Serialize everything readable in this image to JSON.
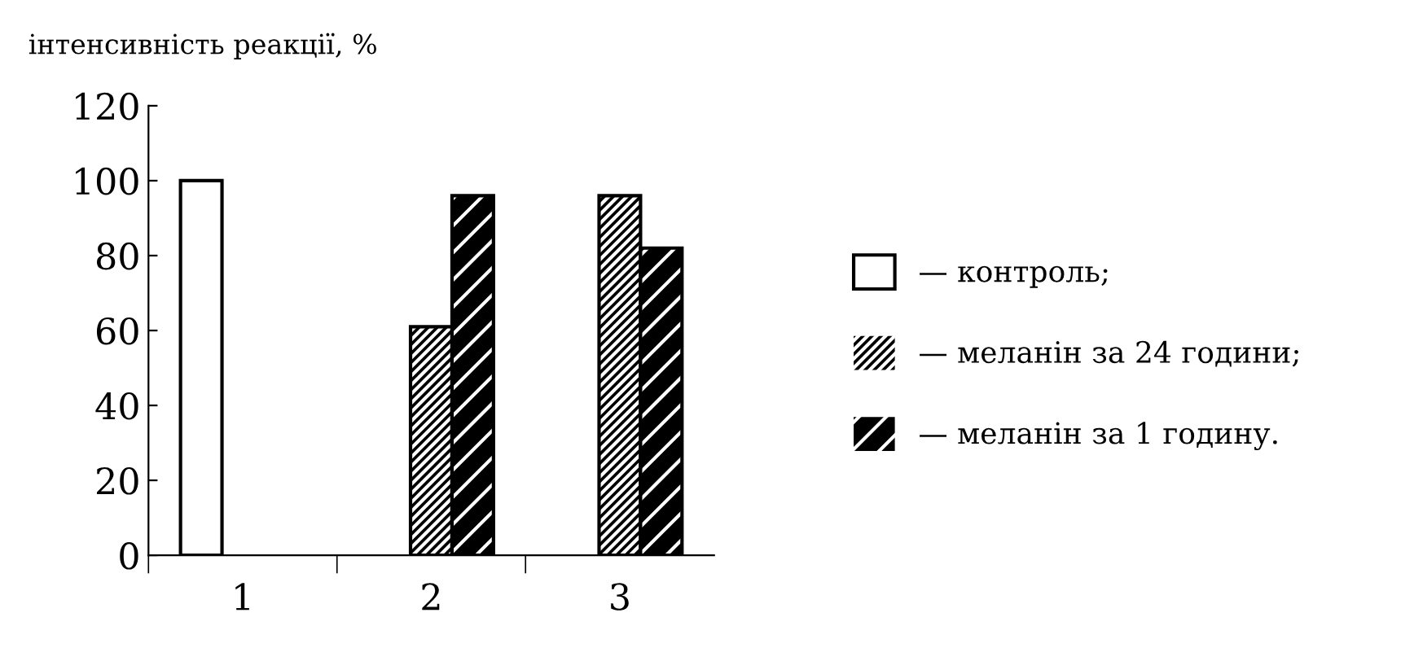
{
  "chart_data": {
    "type": "bar",
    "ylabel": "інтенсивність реакції, %",
    "categories": [
      "1",
      "2",
      "3"
    ],
    "series": [
      {
        "name": "— контроль;",
        "color": "#ffffff",
        "values": [
          100,
          null,
          null
        ]
      },
      {
        "name": "— меланін за 24 години;",
        "color": "#000000",
        "values": [
          null,
          61,
          96
        ]
      },
      {
        "name": "— меланін за 1 годину.",
        "color": "#000000",
        "values": [
          null,
          96,
          82
        ]
      }
    ],
    "ylim": [
      0,
      120
    ],
    "yticks": [
      0,
      20,
      40,
      60,
      80,
      100,
      120
    ],
    "grid": false,
    "legend": "right"
  }
}
